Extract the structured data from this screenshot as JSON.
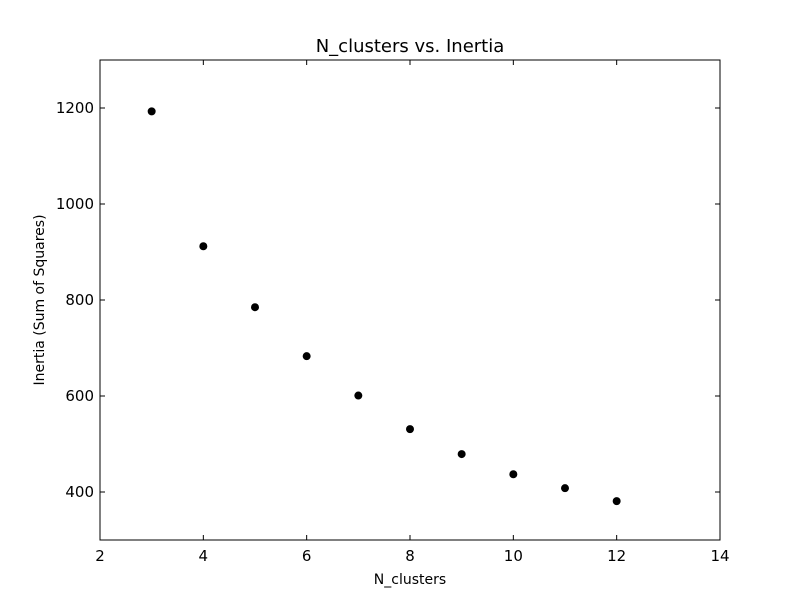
{
  "chart_data": {
    "type": "scatter",
    "title": "N_clusters vs. Inertia",
    "xlabel": "N_clusters",
    "ylabel": "Inertia (Sum of Squares)",
    "xlim": [
      2,
      14
    ],
    "ylim": [
      300,
      1300
    ],
    "xticks": [
      2,
      4,
      6,
      8,
      10,
      12,
      14
    ],
    "yticks": [
      400,
      600,
      800,
      1000,
      1200
    ],
    "grid": false,
    "marker_color": "#000000",
    "series": [
      {
        "x": [
          3,
          4,
          5,
          6,
          7,
          8,
          9,
          10,
          11,
          12
        ],
        "y": [
          1193,
          912,
          785,
          683,
          601,
          531,
          479,
          437,
          408,
          381
        ]
      }
    ]
  }
}
